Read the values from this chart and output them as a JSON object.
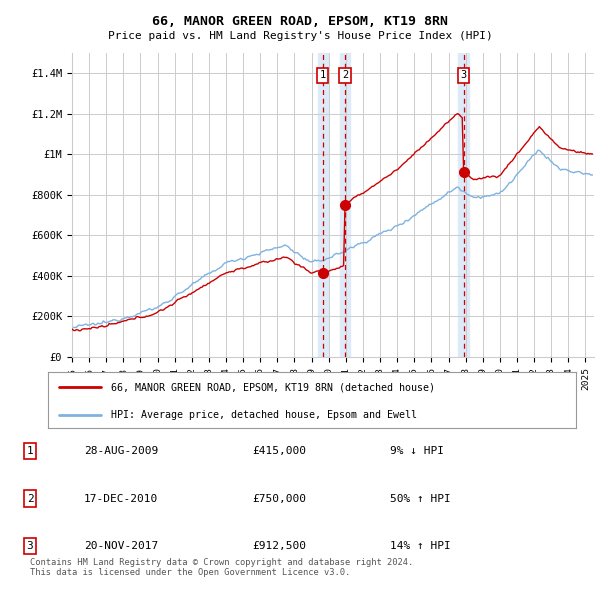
{
  "title": "66, MANOR GREEN ROAD, EPSOM, KT19 8RN",
  "subtitle": "Price paid vs. HM Land Registry's House Price Index (HPI)",
  "ylabel_ticks": [
    "£0",
    "£200K",
    "£400K",
    "£600K",
    "£800K",
    "£1M",
    "£1.2M",
    "£1.4M"
  ],
  "ytick_values": [
    0,
    200000,
    400000,
    600000,
    800000,
    1000000,
    1200000,
    1400000
  ],
  "ylim": [
    0,
    1500000
  ],
  "xlim_start": 1995.0,
  "xlim_end": 2025.5,
  "hpi_color": "#7fb2e0",
  "price_color": "#cc0000",
  "vline_color": "#cc0000",
  "bg_color": "#ffffff",
  "plot_bg": "#ffffff",
  "shade_color": "#ddeaf7",
  "grid_color": "#cccccc",
  "legend_label_red": "66, MANOR GREEN ROAD, EPSOM, KT19 8RN (detached house)",
  "legend_label_blue": "HPI: Average price, detached house, Epsom and Ewell",
  "transactions": [
    {
      "num": 1,
      "date": "28-AUG-2009",
      "price": 415000,
      "pct": "9%",
      "dir": "↓",
      "year": 2009.65
    },
    {
      "num": 2,
      "date": "17-DEC-2010",
      "price": 750000,
      "pct": "50%",
      "dir": "↑",
      "year": 2010.95
    },
    {
      "num": 3,
      "date": "20-NOV-2017",
      "price": 912500,
      "pct": "14%",
      "dir": "↑",
      "year": 2017.88
    }
  ],
  "footer": "Contains HM Land Registry data © Crown copyright and database right 2024.\nThis data is licensed under the Open Government Licence v3.0.",
  "xticks": [
    1995,
    1996,
    1997,
    1998,
    1999,
    2000,
    2001,
    2002,
    2003,
    2004,
    2005,
    2006,
    2007,
    2008,
    2009,
    2010,
    2011,
    2012,
    2013,
    2014,
    2015,
    2016,
    2017,
    2018,
    2019,
    2020,
    2021,
    2022,
    2023,
    2024,
    2025
  ]
}
